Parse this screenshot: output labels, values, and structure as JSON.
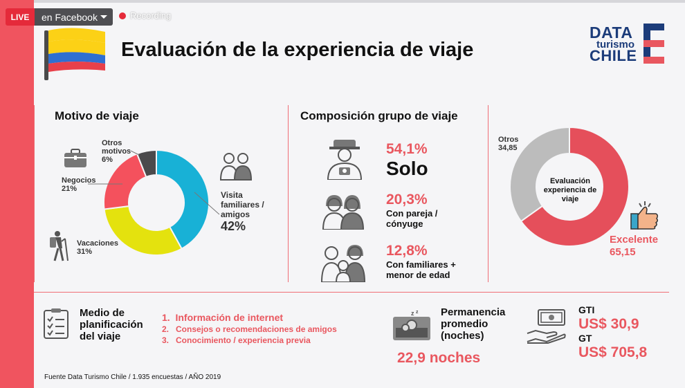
{
  "stream": {
    "live_label": "LIVE",
    "destination": "en Facebook",
    "recording_label": "Recording"
  },
  "header": {
    "title": "Evaluación de la experiencia de viaje"
  },
  "logo": {
    "line1": "DATA",
    "line2": "turismo",
    "line3": "CHILE"
  },
  "colors": {
    "accent": "#e9575f",
    "band": "#f0545f",
    "blue": "#1c3c7a",
    "donut_cyan": "#18b1d6",
    "donut_yellow": "#e4e20e",
    "donut_red": "#f4515d",
    "donut_dark": "#4b4a4c",
    "eval_gray": "#bcbcbc",
    "eval_red": "#e54f5b"
  },
  "icons": [
    "suitcase-icon",
    "hiker-icon",
    "couple-icon",
    "traveler-icon",
    "family-icon",
    "checklist-icon",
    "sleeper-icon",
    "money-hand-icon",
    "thumbs-up-icon"
  ],
  "chart_data": [
    {
      "type": "pie",
      "title": "Motivo de viaje",
      "categories": [
        "Visita familiares / amigos",
        "Vacaciones",
        "Negocios",
        "Otros motivos"
      ],
      "values": [
        42,
        31,
        21,
        6
      ],
      "labels": [
        {
          "name": "Visita familiares / amigos",
          "pct": "42%"
        },
        {
          "name": "Vacaciones",
          "pct": "31%"
        },
        {
          "name": "Negocios",
          "pct": "21%"
        },
        {
          "name": "Otros motivos",
          "pct": "6%"
        }
      ]
    },
    {
      "type": "table",
      "title": "Composición grupo de viaje",
      "rows": [
        {
          "pct": "54,1%",
          "label": "Solo",
          "value": 54.1
        },
        {
          "pct": "20,3%",
          "label": "Con pareja / cónyuge",
          "value": 20.3
        },
        {
          "pct": "12,8%",
          "label": "Con familiares + menor de edad",
          "value": 12.8
        }
      ]
    },
    {
      "type": "pie",
      "center_label": "Evaluación experiencia de viaje",
      "categories": [
        "Excelente",
        "Otros"
      ],
      "values": [
        65.15,
        34.85
      ],
      "value_labels": [
        "65,15",
        "34,85"
      ]
    }
  ],
  "planning": {
    "title": "Medio de planificación del viaje",
    "items": [
      "Información de internet",
      "Consejos o recomendaciones de amigos",
      "Conocimiento / experiencia previa"
    ]
  },
  "stay": {
    "title": "Permanencia promedio (noches)",
    "value": "22,9 noches"
  },
  "spend": {
    "gti_label": "GTI",
    "gti_value": "US$ 30,9",
    "gt_label": "GT",
    "gt_value": "US$ 705,8"
  },
  "footer": {
    "source": "Fuente Data Turismo Chile / 1.935 encuestas / AÑO 2019"
  }
}
